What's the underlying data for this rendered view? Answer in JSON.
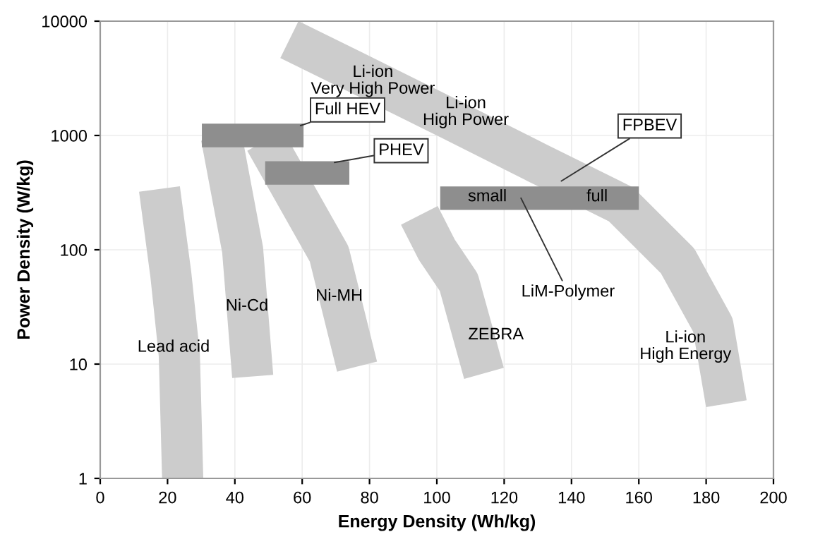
{
  "chart_data": {
    "type": "line",
    "xlabel": "Energy Density (Wh/kg)",
    "ylabel": "Power Density (W/kg)",
    "log": "y",
    "grid": true,
    "marker": "none",
    "line_style": "solid",
    "xlim": [
      0,
      200
    ],
    "xticks": [
      0,
      20,
      40,
      60,
      80,
      100,
      120,
      140,
      160,
      180,
      200
    ],
    "ylim": [
      1,
      10000
    ],
    "yticks": [
      1,
      10,
      100,
      1000,
      10000
    ],
    "series": [
      {
        "color": "#cccccc",
        "x": [
          17.6,
          21,
          23.5,
          24.5
        ],
        "values": [
          340,
          60,
          12,
          1
        ]
      },
      {
        "color": "#cccccc",
        "x": [
          36,
          42.3,
          45.3
        ],
        "values": [
          970,
          100,
          7.8
        ]
      },
      {
        "color": "#cccccc",
        "x": [
          49,
          68,
          76.3
        ],
        "values": [
          900,
          92,
          9.5
        ]
      },
      {
        "color": "#cccccc",
        "x": [
          94.8,
          100,
          106.5,
          114
        ],
        "values": [
          200,
          100,
          52,
          8.3
        ]
      },
      {
        "color": "#cccccc",
        "x": [
          56.2,
          79.2,
          104.4,
          129.6,
          154.7,
          171.5,
          182,
          186
        ],
        "values": [
          6900,
          3200,
          1370,
          580,
          250,
          80,
          22,
          4.5
        ]
      },
      {
        "color": "#8e8e8e",
        "x": [
          30.2,
          60.4
        ],
        "values": [
          1000,
          1000
        ]
      },
      {
        "color": "#8e8e8e",
        "x": [
          49,
          74
        ],
        "values": [
          470,
          470
        ]
      },
      {
        "color": "#8e8e8e",
        "x": [
          101,
          160
        ],
        "values": [
          283,
          283
        ]
      }
    ],
    "annotations": [
      {
        "text": "Lead acid",
        "x": 21.8,
        "y": 14
      },
      {
        "text": "Ni-Cd",
        "x": 43.6,
        "y": 32
      },
      {
        "text": "Ni-MH",
        "x": 71,
        "y": 39
      },
      {
        "text": "ZEBRA",
        "x": 106.5,
        "y": 52
      },
      {
        "text": "Li-ion\nVery High Power",
        "x": 81,
        "y": 3000
      },
      {
        "text": "Li-ion\nHigh Power",
        "x": 108.6,
        "y": 1600
      },
      {
        "text": "Li-ion\nHigh Energy",
        "x": 182,
        "y": 22
      },
      {
        "text": "small",
        "x": 115,
        "y": 290
      },
      {
        "text": "full",
        "x": 147.6,
        "y": 290
      },
      {
        "text": "Full HEV",
        "x": 59.5,
        "y": 1220
      },
      {
        "text": "PHEV",
        "x": 69.6,
        "y": 580
      },
      {
        "text": "FPBEV",
        "x": 137,
        "y": 400
      },
      {
        "text": "LiM-Polymer",
        "x": 125,
        "y": 283
      }
    ]
  }
}
